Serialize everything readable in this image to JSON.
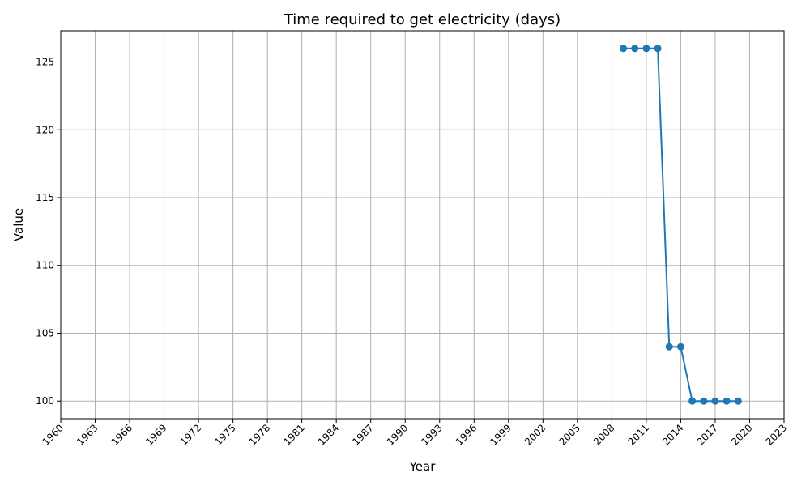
{
  "chart_data": {
    "type": "line",
    "title": "Time required to get electricity (days)",
    "xlabel": "Year",
    "ylabel": "Value",
    "xlim": [
      1960,
      2023
    ],
    "ylim": [
      98.7,
      127.3
    ],
    "x_ticks": [
      1960,
      1963,
      1966,
      1969,
      1972,
      1975,
      1978,
      1981,
      1984,
      1987,
      1990,
      1993,
      1996,
      1999,
      2002,
      2005,
      2008,
      2011,
      2014,
      2017,
      2020,
      2023
    ],
    "y_ticks": [
      100,
      105,
      110,
      115,
      120,
      125
    ],
    "grid": true,
    "series": [
      {
        "color": "#1f77b4",
        "marker": "circle",
        "x": [
          2009,
          2010,
          2011,
          2012,
          2013,
          2014,
          2015,
          2016,
          2017,
          2018,
          2019
        ],
        "y": [
          126,
          126,
          126,
          126,
          104,
          104,
          100,
          100,
          100,
          100,
          100
        ]
      }
    ]
  }
}
